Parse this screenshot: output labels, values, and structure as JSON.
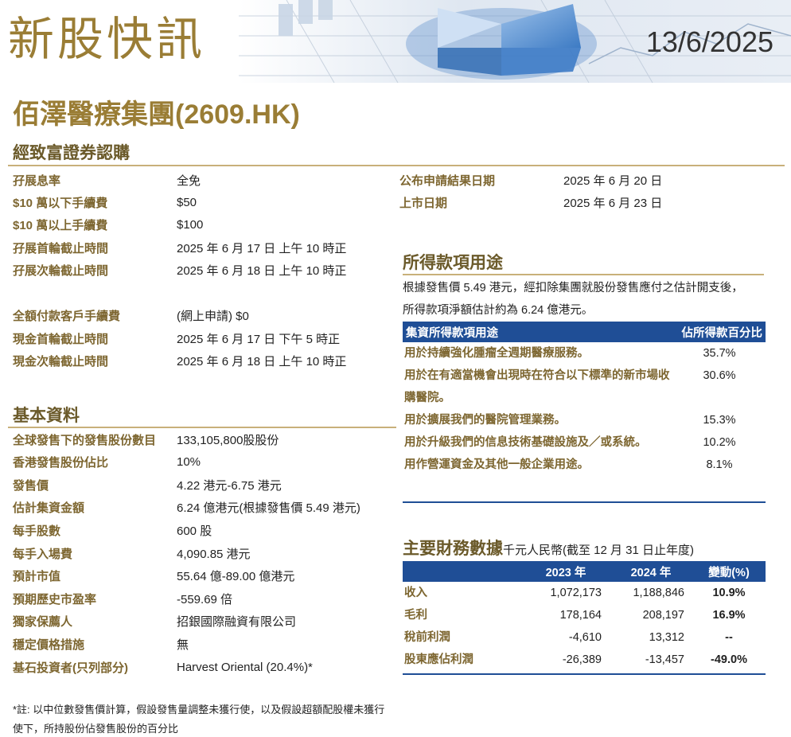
{
  "header": {
    "title": "新股快訊",
    "date": "13/6/2025"
  },
  "company": "佰澤醫療集團(2609.HK)",
  "subscription": {
    "heading": "經致富證券認購",
    "rows": [
      {
        "label": "孖展息率",
        "value": "全免"
      },
      {
        "label": "$10 萬以下手續費",
        "value": "$50"
      },
      {
        "label": "$10 萬以上手續費",
        "value": "$100"
      },
      {
        "label": "孖展首輪截止時間",
        "value": "2025 年 6 月 17 日 上午 10 時正"
      },
      {
        "label": "孖展次輪截止時間",
        "value": "2025 年 6 月 18 日 上午 10 時正"
      },
      {
        "label": "全額付款客戶手續費",
        "value": "(網上申請) $0"
      },
      {
        "label": "現金首輪截止時間",
        "value": "2025 年 6 月 17 日 下午 5 時正"
      },
      {
        "label": "現金次輪截止時間",
        "value": "2025 年 6 月 18 日 上午 10 時正"
      }
    ]
  },
  "dates": {
    "rows": [
      {
        "label": "公布申請結果日期",
        "value": "2025 年 6 月 20 日"
      },
      {
        "label": "上市日期",
        "value": "2025 年 6 月 23 日"
      }
    ]
  },
  "basic": {
    "heading": "基本資料",
    "rows": [
      {
        "label": "全球發售下的發售股份數目",
        "value": "133,105,800股股份"
      },
      {
        "label": "香港發售股份佔比",
        "value": "10%"
      },
      {
        "label": "發售價",
        "value": "4.22 港元-6.75 港元"
      },
      {
        "label": "估計集資金額",
        "value": "6.24 億港元(根據發售價 5.49 港元)"
      },
      {
        "label": "每手股數",
        "value": "600 股"
      },
      {
        "label": "每手入場費",
        "value": "4,090.85 港元"
      },
      {
        "label": "預計市值",
        "value": "55.64 億-89.00 億港元"
      },
      {
        "label": "預期歷史市盈率",
        "value": "-559.69 倍"
      },
      {
        "label": "獨家保薦人",
        "value": "招銀國際融資有限公司"
      },
      {
        "label": "穩定價格措施",
        "value": "無"
      },
      {
        "label": "基石投資者(只列部分)",
        "value": "Harvest Oriental (20.4%)*"
      }
    ]
  },
  "proceeds": {
    "heading": "所得款項用途",
    "intro": "根據發售價 5.49 港元，經扣除集團就股份發售應付之估計開支後，所得款項淨額估計約為 6.24 億港元。",
    "col_use": "集資所得款項用途",
    "col_pct": "佔所得款百分比",
    "rows": [
      {
        "use": "用於持續強化腫瘤全週期醫療服務。",
        "pct": "35.7%"
      },
      {
        "use": "用於在有適當機會出現時在符合以下標準的新市場收購醫院。",
        "pct": "30.6%"
      },
      {
        "use": "用於擴展我們的醫院管理業務。",
        "pct": "15.3%"
      },
      {
        "use": "用於升級我們的信息技術基礎設施及／或系統。",
        "pct": "10.2%"
      },
      {
        "use": "用作營運資金及其他一般企業用途。",
        "pct": "8.1%"
      }
    ]
  },
  "financials": {
    "heading": "主要財務數據",
    "unit": "千元人民幣(截至 12 月 31 日止年度)",
    "columns": [
      "",
      "2023 年",
      "2024 年",
      "變動(%)"
    ],
    "rows": [
      {
        "label": "收入",
        "y2023": "1,072,173",
        "y2024": "1,188,846",
        "change": "10.9%"
      },
      {
        "label": "毛利",
        "y2023": "178,164",
        "y2024": "208,197",
        "change": "16.9%"
      },
      {
        "label": "稅前利潤",
        "y2023": "-4,610",
        "y2024": "13,312",
        "change": "--"
      },
      {
        "label": "股東應佔利潤",
        "y2023": "-26,389",
        "y2024": "-13,457",
        "change": "-49.0%"
      }
    ]
  },
  "footnote": "*註: 以中位數發售價計算，假設發售量調整未獲行使，以及假設超額配股權未獲行使下，所持股份佔發售股份的百分比",
  "colors": {
    "gold": "#9a7d35",
    "label": "#7d6630",
    "navy": "#1f4e96"
  }
}
